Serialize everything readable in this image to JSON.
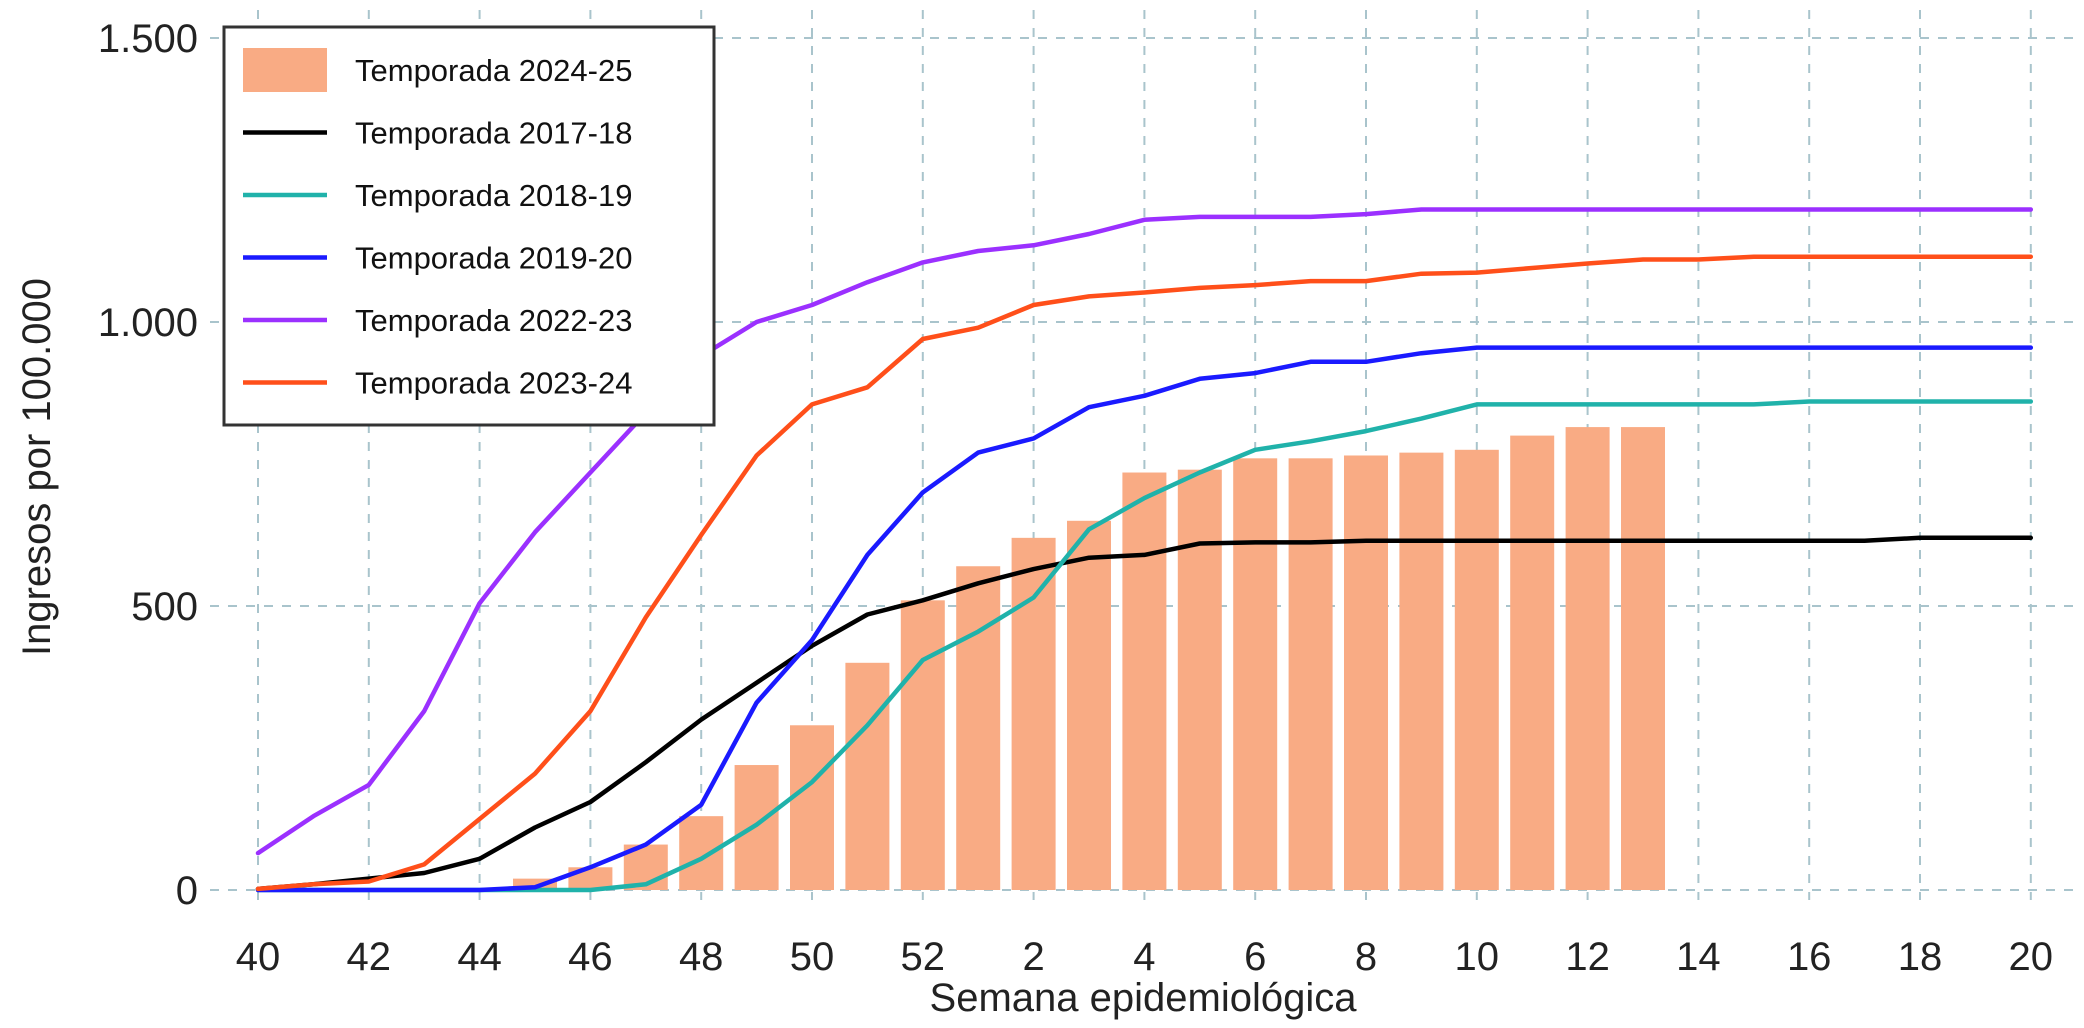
{
  "chart_data": {
    "type": "bar",
    "xlabel": "Semana epidemiológica",
    "ylabel": "Ingresos por 100.000",
    "ylim": [
      0,
      1500
    ],
    "yticks": [
      0,
      500,
      1000,
      1500
    ],
    "ytick_labels": [
      "0",
      "500",
      "1.000",
      "1.500"
    ],
    "grid": true,
    "legend_position": "top-left",
    "x_weeks": [
      40,
      41,
      42,
      43,
      44,
      45,
      46,
      47,
      48,
      49,
      50,
      51,
      52,
      1,
      2,
      3,
      4,
      5,
      6,
      7,
      8,
      9,
      10,
      11,
      12,
      13,
      14,
      15,
      16,
      17,
      18,
      19,
      20
    ],
    "xtick_labels": [
      "40",
      "42",
      "44",
      "46",
      "48",
      "50",
      "52",
      "2",
      "4",
      "6",
      "8",
      "10",
      "12",
      "14",
      "16",
      "18",
      "20"
    ],
    "bar_series": {
      "name": "Temporada 2024-25",
      "color": "#f9ab84",
      "values": [
        null,
        null,
        null,
        null,
        null,
        20,
        40,
        80,
        130,
        220,
        290,
        400,
        510,
        570,
        620,
        650,
        735,
        740,
        760,
        760,
        765,
        770,
        775,
        800,
        815,
        815
      ]
    },
    "series": [
      {
        "name": "Temporada 2017-18",
        "color": "#000000",
        "values": [
          2,
          10,
          20,
          30,
          55,
          110,
          155,
          225,
          300,
          365,
          430,
          485,
          510,
          540,
          565,
          585,
          590,
          610,
          612,
          612,
          615,
          615,
          615,
          615,
          615,
          615,
          615,
          615,
          615,
          615,
          620,
          620,
          620
        ]
      },
      {
        "name": "Temporada 2018-19",
        "color": "#20b2aa",
        "values": [
          0,
          0,
          0,
          0,
          0,
          0,
          0,
          10,
          55,
          115,
          190,
          290,
          405,
          455,
          515,
          635,
          690,
          735,
          775,
          790,
          808,
          830,
          855,
          855,
          855,
          855,
          855,
          855,
          860,
          860,
          860,
          860,
          860
        ]
      },
      {
        "name": "Temporada 2019-20",
        "color": "#1a1aff",
        "values": [
          0,
          0,
          0,
          0,
          0,
          5,
          40,
          80,
          150,
          330,
          440,
          590,
          700,
          770,
          795,
          850,
          870,
          900,
          910,
          930,
          930,
          945,
          955,
          955,
          955,
          955,
          955,
          955,
          955,
          955,
          955,
          955,
          955
        ]
      },
      {
        "name": "Temporada 2022-23",
        "color": "#9b30ff",
        "values": [
          65,
          130,
          185,
          315,
          505,
          630,
          735,
          840,
          940,
          1000,
          1030,
          1070,
          1105,
          1125,
          1135,
          1155,
          1180,
          1185,
          1185,
          1185,
          1190,
          1198,
          1198,
          1198,
          1198,
          1198,
          1198,
          1198,
          1198,
          1198,
          1198,
          1198,
          1198
        ]
      },
      {
        "name": "Temporada 2023-24",
        "color": "#ff4f1a",
        "values": [
          2,
          10,
          15,
          45,
          125,
          205,
          315,
          480,
          625,
          765,
          855,
          885,
          970,
          990,
          1030,
          1045,
          1052,
          1060,
          1065,
          1072,
          1072,
          1085,
          1087,
          1095,
          1103,
          1110,
          1110,
          1115,
          1115,
          1115,
          1115,
          1115,
          1115
        ]
      }
    ]
  }
}
